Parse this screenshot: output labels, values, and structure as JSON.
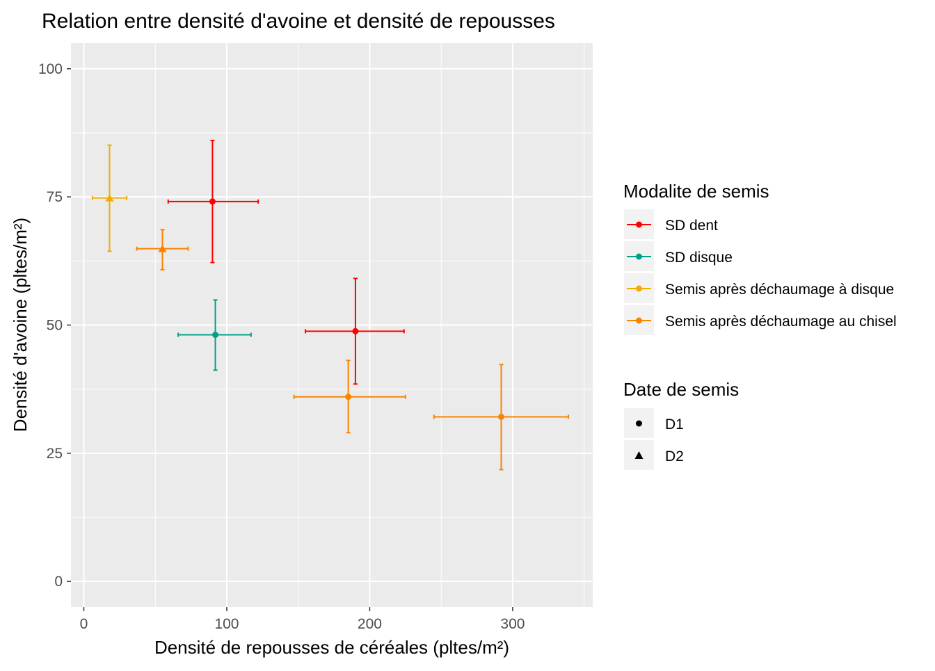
{
  "chart_data": {
    "type": "scatter",
    "title": "Relation entre densité d'avoine et densité de repousses",
    "xlabel": "Densité de repousses de céréales (pltes/m²)",
    "ylabel": "Densité d'avoine (pltes/m²)",
    "xlim": [
      -9,
      356
    ],
    "ylim": [
      -5,
      105
    ],
    "xticks": [
      0,
      100,
      200,
      300
    ],
    "yticks": [
      0,
      25,
      50,
      75,
      100
    ],
    "grid": true,
    "legend_position": "right",
    "colors": {
      "SD dent": "#FF0000",
      "SD disque": "#00A08A",
      "Semis après déchaumage à disque": "#F2AD00",
      "Semis après déchaumage au chisel": "#F98400"
    },
    "legends": [
      {
        "title": "Modalite de semis",
        "type": "color",
        "entries": [
          "SD dent",
          "SD disque",
          "Semis après déchaumage à disque",
          "Semis après déchaumage au chisel"
        ]
      },
      {
        "title": "Date de semis",
        "type": "shape",
        "entries": [
          {
            "label": "D1",
            "shape": "circle"
          },
          {
            "label": "D2",
            "shape": "triangle"
          }
        ]
      }
    ],
    "points": [
      {
        "modalite": "SD dent",
        "date": "D1",
        "x": 90,
        "y": 74.1,
        "xmin": 59,
        "xmax": 122,
        "ymin": 62.2,
        "ymax": 86
      },
      {
        "modalite": "SD dent",
        "date": "D1",
        "x": 190,
        "y": 48.8,
        "xmin": 155,
        "xmax": 224,
        "ymin": 38.5,
        "ymax": 59.1
      },
      {
        "modalite": "SD disque",
        "date": "D1",
        "x": 92,
        "y": 48.1,
        "xmin": 66,
        "xmax": 117,
        "ymin": 41.2,
        "ymax": 54.9
      },
      {
        "modalite": "Semis après déchaumage à disque",
        "date": "D2",
        "x": 18,
        "y": 74.8,
        "xmin": 6,
        "xmax": 30,
        "ymin": 64.4,
        "ymax": 85.1
      },
      {
        "modalite": "Semis après déchaumage au chisel",
        "date": "D2",
        "x": 55,
        "y": 64.9,
        "xmin": 37,
        "xmax": 73,
        "ymin": 60.8,
        "ymax": 68.6
      },
      {
        "modalite": "Semis après déchaumage au chisel",
        "date": "D1",
        "x": 185,
        "y": 36,
        "xmin": 147,
        "xmax": 225,
        "ymin": 29,
        "ymax": 43.1
      },
      {
        "modalite": "Semis après déchaumage au chisel",
        "date": "D1",
        "x": 292,
        "y": 32.1,
        "xmin": 245,
        "xmax": 339,
        "ymin": 21.8,
        "ymax": 42.3
      }
    ]
  }
}
